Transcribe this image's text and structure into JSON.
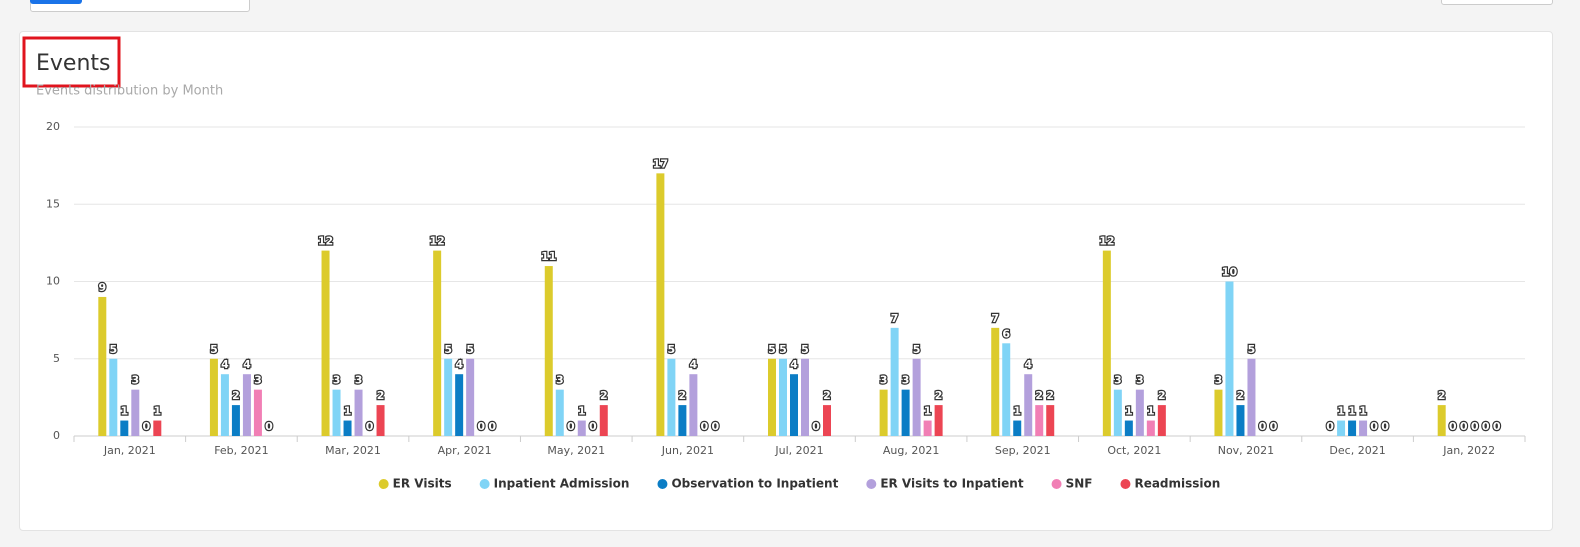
{
  "chart_data": {
    "type": "bar",
    "title": "Events",
    "subtitle": "Events distribution by Month",
    "categories": [
      "Jan, 2021",
      "Feb, 2021",
      "Mar, 2021",
      "Apr, 2021",
      "May, 2021",
      "Jun, 2021",
      "Jul, 2021",
      "Aug, 2021",
      "Sep, 2021",
      "Oct, 2021",
      "Nov, 2021",
      "Dec, 2021",
      "Jan, 2022"
    ],
    "series": [
      {
        "name": "ER Visits",
        "color": "#dccb2c",
        "values": [
          9,
          5,
          12,
          12,
          11,
          17,
          5,
          3,
          7,
          12,
          3,
          0,
          2
        ]
      },
      {
        "name": "Inpatient Admission",
        "color": "#80d4f6",
        "values": [
          5,
          4,
          3,
          5,
          3,
          5,
          5,
          7,
          6,
          3,
          10,
          1,
          0
        ]
      },
      {
        "name": "Observation to Inpatient",
        "color": "#0b7dc5",
        "values": [
          1,
          2,
          1,
          4,
          0,
          2,
          4,
          3,
          1,
          1,
          2,
          1,
          0
        ]
      },
      {
        "name": "ER Visits to Inpatient",
        "color": "#b3a0dc",
        "values": [
          3,
          4,
          3,
          5,
          1,
          4,
          5,
          5,
          4,
          3,
          5,
          1,
          0
        ]
      },
      {
        "name": "SNF",
        "color": "#f17fb5",
        "values": [
          0,
          3,
          0,
          0,
          0,
          0,
          0,
          1,
          2,
          1,
          0,
          0,
          0
        ]
      },
      {
        "name": "Readmission",
        "color": "#ec4553",
        "values": [
          1,
          0,
          2,
          0,
          2,
          0,
          2,
          2,
          2,
          2,
          0,
          0,
          0
        ]
      }
    ],
    "ylim": [
      0,
      20
    ],
    "yticks": [
      0,
      5,
      10,
      15,
      20
    ],
    "grid": true,
    "legend": "bottom"
  }
}
